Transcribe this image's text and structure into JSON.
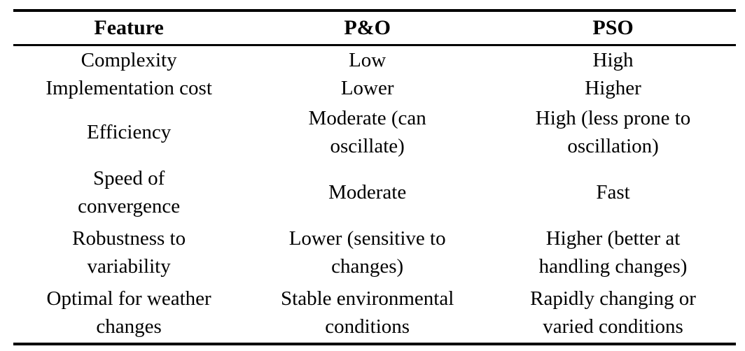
{
  "table": {
    "columns": [
      {
        "label": "Feature"
      },
      {
        "label": "P&O"
      },
      {
        "label": "PSO"
      }
    ],
    "rows": [
      {
        "feature": "Complexity",
        "po": "Low",
        "pso": "High"
      },
      {
        "feature": "Implementation cost",
        "po": "Lower",
        "pso": "Higher"
      },
      {
        "feature": "Efficiency",
        "po": [
          "Moderate (can",
          "oscillate)"
        ],
        "pso": [
          "High (less prone to",
          "oscillation)"
        ]
      },
      {
        "feature": [
          "Speed of",
          "convergence"
        ],
        "po": "Moderate",
        "pso": "Fast"
      },
      {
        "feature": [
          "Robustness to",
          "variability"
        ],
        "po": [
          "Lower (sensitive to",
          "changes)"
        ],
        "pso": [
          "Higher (better at",
          "handling changes)"
        ]
      },
      {
        "feature": [
          "Optimal for weather",
          "changes"
        ],
        "po": [
          "Stable environmental",
          "conditions"
        ],
        "pso": [
          "Rapidly changing or",
          "varied conditions"
        ]
      }
    ],
    "colors": {
      "text": "#000000",
      "background": "#ffffff",
      "rule": "#000000"
    }
  }
}
